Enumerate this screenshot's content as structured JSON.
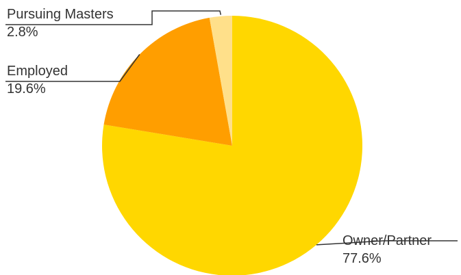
{
  "chart_data": {
    "type": "pie",
    "title": "",
    "start_angle_deg": 0,
    "direction": "clockwise",
    "slices": [
      {
        "label": "Owner/Partner",
        "value": 77.6,
        "value_label": "77.6%",
        "color": "#FFD700"
      },
      {
        "label": "Employed",
        "value": 19.6,
        "value_label": "19.6%",
        "color": "#FF9E00"
      },
      {
        "label": "Pursuing Masters",
        "value": 2.8,
        "value_label": "2.8%",
        "color": "#FFE08A"
      }
    ],
    "legend": "none",
    "labels_placement": "outside with leader lines"
  }
}
